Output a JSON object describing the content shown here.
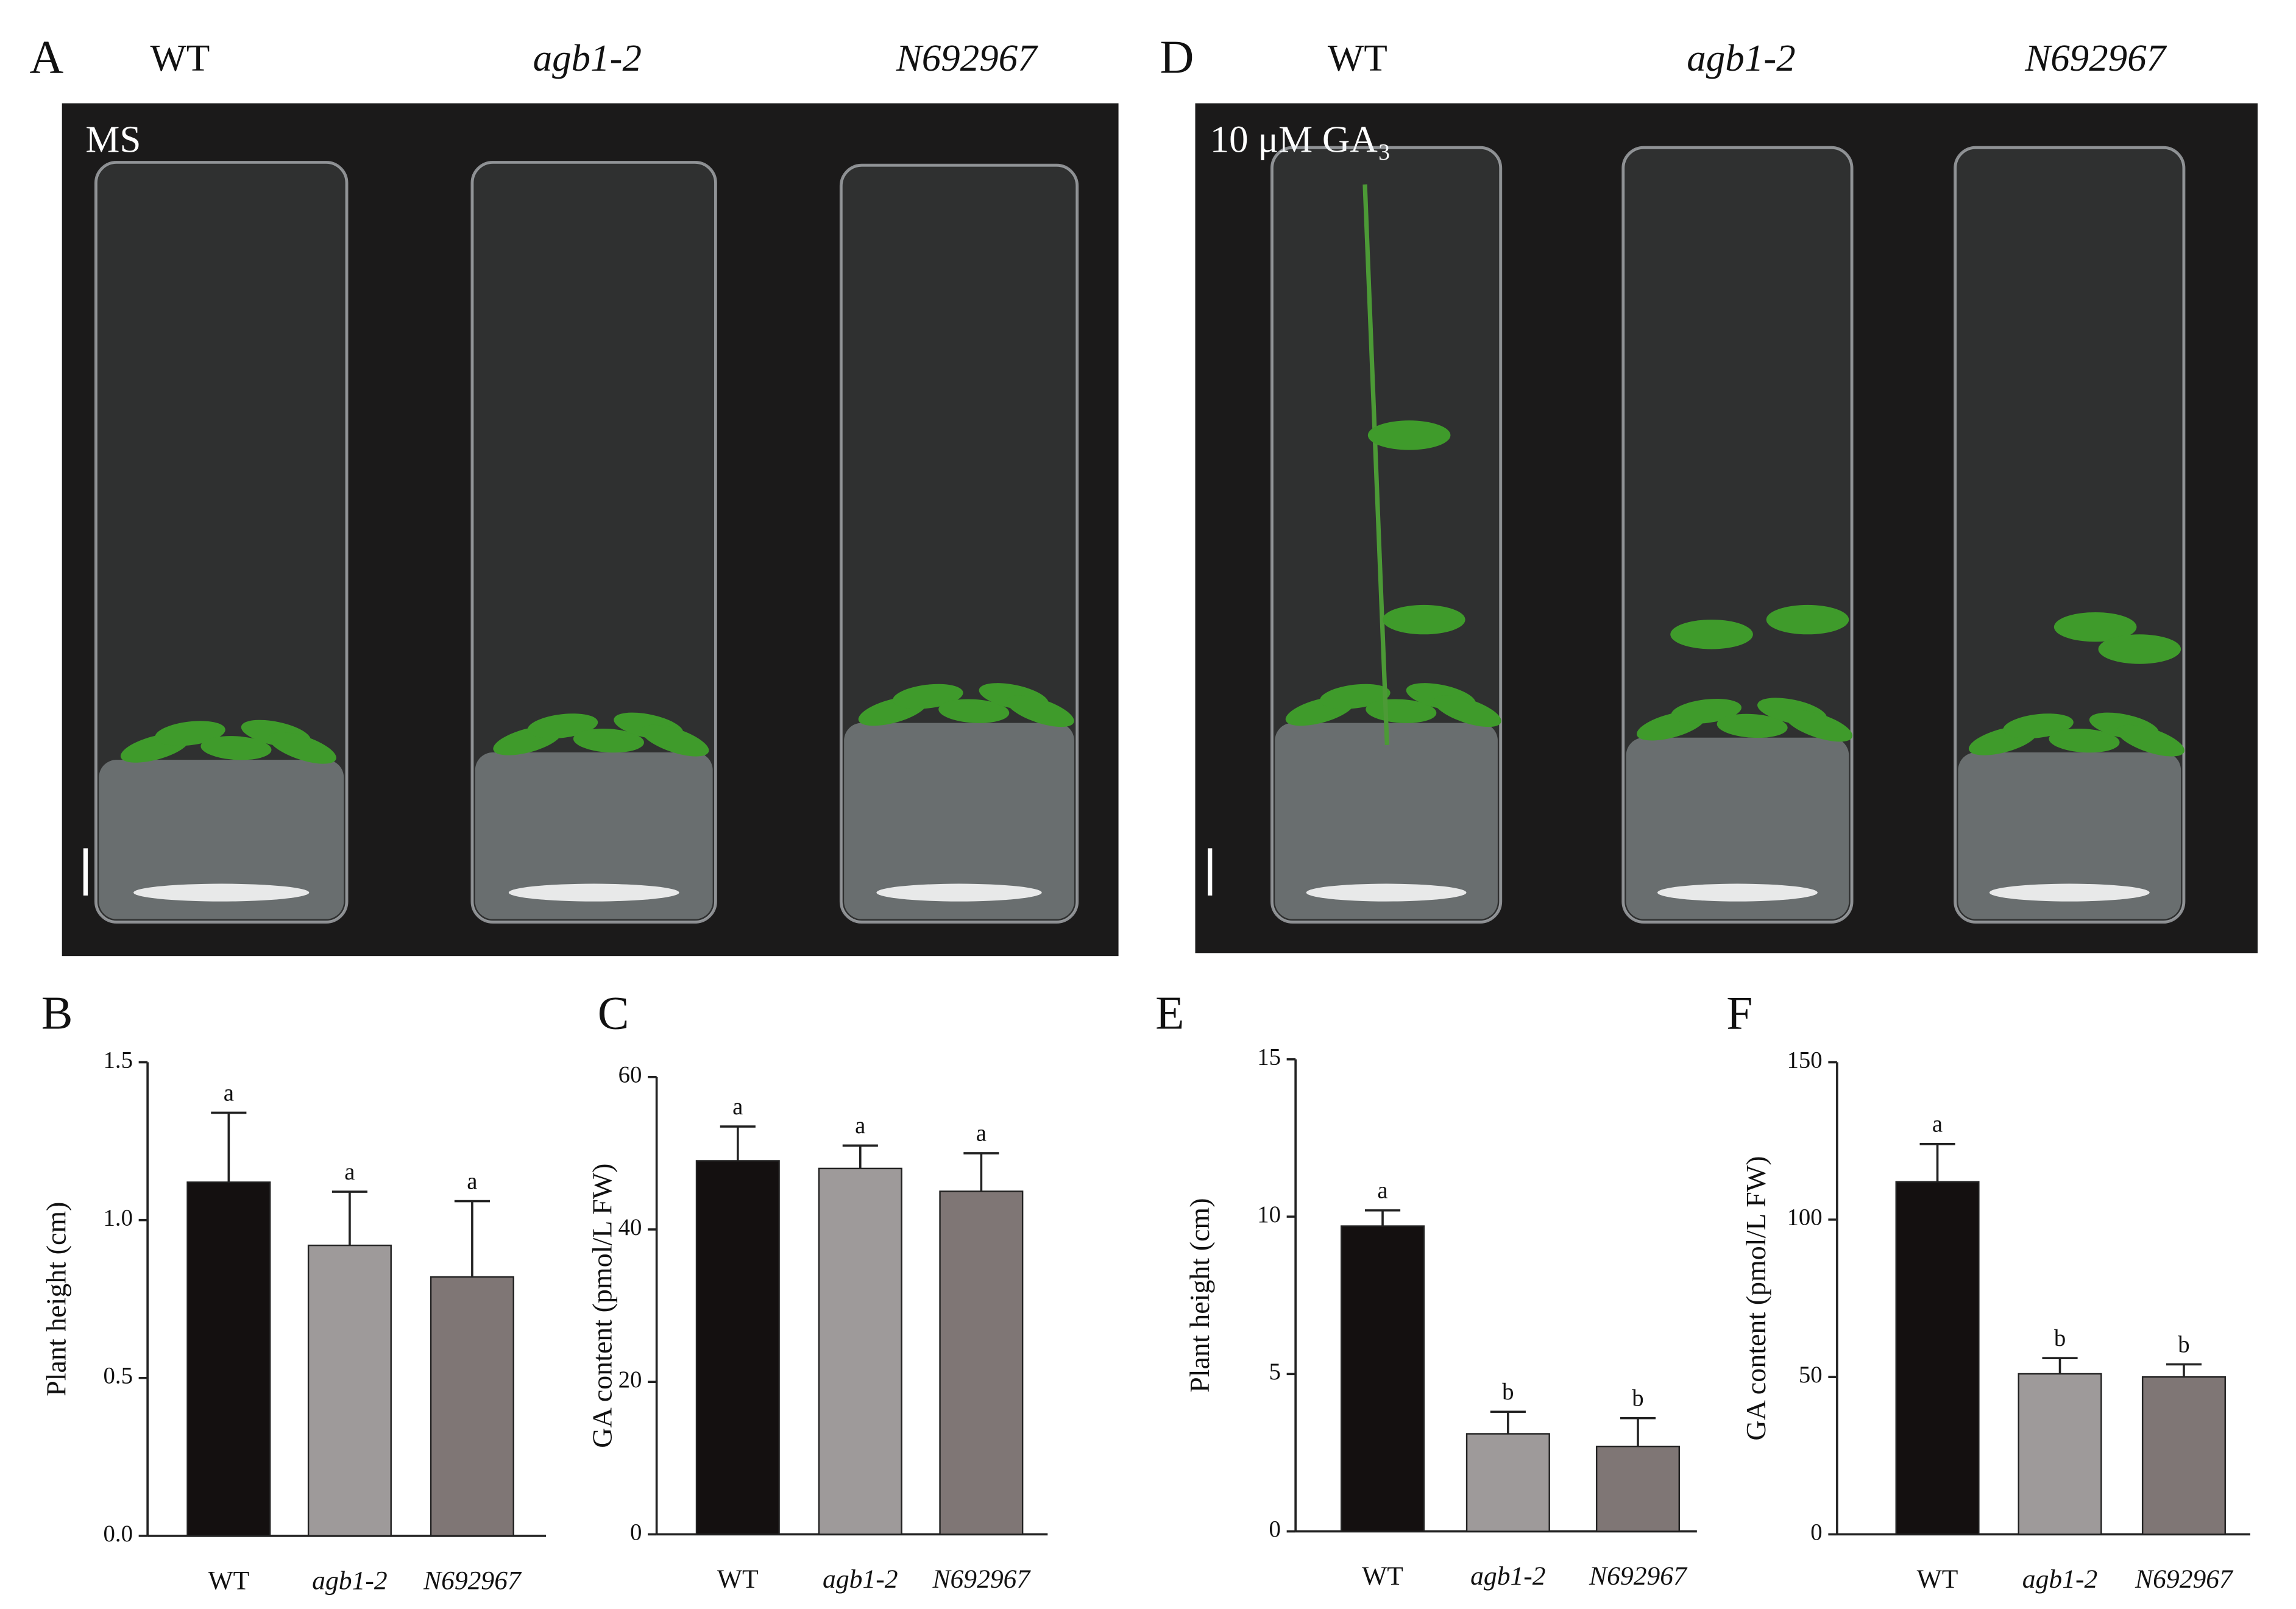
{
  "panels": [
    {
      "letter": "A",
      "condition": "MS",
      "genotypes": [
        "WT",
        "agb1-2",
        "N692967"
      ]
    },
    {
      "letter": "D",
      "condition": "10 μM GA₃",
      "genotypes": [
        "WT",
        "agb1-2",
        "N692967"
      ]
    }
  ],
  "chart_data": [
    {
      "type": "bar",
      "label": "B",
      "ylabel": "Plant height (cm)",
      "categories": [
        "WT",
        "agb1-2",
        "N692967"
      ],
      "values": [
        1.12,
        0.92,
        0.82
      ],
      "errors": [
        0.22,
        0.17,
        0.24
      ],
      "annotations": [
        "a",
        "a",
        "a"
      ],
      "colors": [
        "#141010",
        "#9e9a9a",
        "#7f7675"
      ],
      "ylim": [
        0,
        1.5
      ],
      "yticks": [
        {
          "value": 0,
          "label": "0.0"
        },
        {
          "value": 0.5,
          "label": "0.5"
        },
        {
          "value": 1,
          "label": "1.0"
        },
        {
          "value": 1.5,
          "label": "1.5"
        }
      ],
      "grid": false
    },
    {
      "type": "bar",
      "label": "C",
      "ylabel": "GA content (pmol/L FW)",
      "categories": [
        "WT",
        "agb1-2",
        "N692967"
      ],
      "values": [
        49,
        48,
        45
      ],
      "errors": [
        4.5,
        3,
        5
      ],
      "annotations": [
        "a",
        "a",
        "a"
      ],
      "colors": [
        "#141010",
        "#9e9a9a",
        "#7f7675"
      ],
      "ylim": [
        0,
        60
      ],
      "yticks": [
        0,
        20,
        40,
        60
      ],
      "grid": false
    },
    {
      "type": "bar",
      "label": "E",
      "ylabel": "Plant height (cm)",
      "categories": [
        "WT",
        "agb1-2",
        "N692967"
      ],
      "values": [
        9.7,
        3.1,
        2.7
      ],
      "errors": [
        0.5,
        0.7,
        0.9
      ],
      "annotations": [
        "a",
        "b",
        "b"
      ],
      "colors": [
        "#141010",
        "#9e9a9a",
        "#7f7675"
      ],
      "ylim": [
        0,
        15
      ],
      "yticks": [
        0,
        5,
        10,
        15
      ],
      "grid": false
    },
    {
      "type": "bar",
      "label": "F",
      "ylabel": "GA content (pmol/L FW)",
      "categories": [
        "WT",
        "agb1-2",
        "N692967"
      ],
      "values": [
        112,
        51,
        50
      ],
      "errors": [
        12,
        5,
        4
      ],
      "annotations": [
        "a",
        "b",
        "b"
      ],
      "colors": [
        "#141010",
        "#9e9a9a",
        "#7f7675"
      ],
      "ylim": [
        0,
        150
      ],
      "yticks": [
        0,
        50,
        100,
        150
      ],
      "grid": false
    }
  ]
}
